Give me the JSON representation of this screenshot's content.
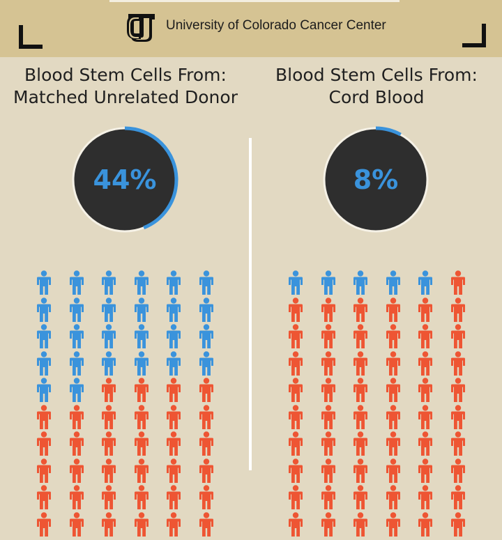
{
  "header": {
    "org_name": "University of Colorado Cancer Center",
    "logo_icon": "cu-logo-icon",
    "background_color": "#d5c393"
  },
  "panels": [
    {
      "title_line1": "Blood Stem Cells From:",
      "title_line2": "Matched Unrelated Donor",
      "percent_label": "44%",
      "percent_value": 44
    },
    {
      "title_line1": "Blood Stem Cells From:",
      "title_line2": "Cord Blood",
      "percent_label": "8%",
      "percent_value": 8
    }
  ],
  "colors": {
    "match_color": "#3a93dc",
    "no_match_color": "#ee5533",
    "gauge_fill": "#2e2e2e",
    "gauge_ring": "#f5f1e6"
  },
  "icons": {
    "person": "person-icon"
  }
}
